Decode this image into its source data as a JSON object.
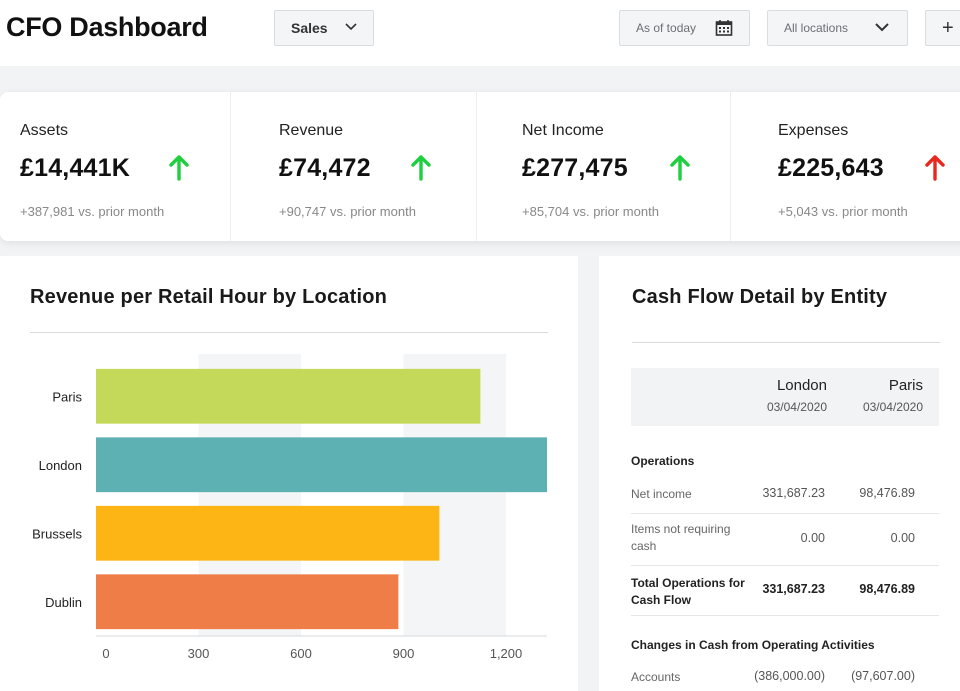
{
  "header": {
    "title": "CFO Dashboard",
    "view_select": "Sales",
    "date_filter": "As of today",
    "location_filter": "All locations",
    "add_label": "+"
  },
  "kpis": [
    {
      "label": "Assets",
      "value": "£14,441K",
      "delta": "+387,981 vs. prior month",
      "trend": "up",
      "trend_color": "#1fcf3f"
    },
    {
      "label": "Revenue",
      "value": "£74,472",
      "delta": "+90,747 vs. prior month",
      "trend": "up",
      "trend_color": "#1fcf3f"
    },
    {
      "label": "Net Income",
      "value": "£277,475",
      "delta": "+85,704 vs. prior month",
      "trend": "up",
      "trend_color": "#1fcf3f"
    },
    {
      "label": "Expenses",
      "value": "£225,643",
      "delta": "+5,043 vs. prior month",
      "trend": "up",
      "trend_color": "#e8281e"
    }
  ],
  "revenue_panel": {
    "title": "Revenue per Retail Hour by Location"
  },
  "chart_data": {
    "type": "bar",
    "orientation": "horizontal",
    "categories": [
      "Paris",
      "London",
      "Brussels",
      "Dublin"
    ],
    "values": [
      1125,
      1320,
      1005,
      885
    ],
    "colors": [
      "#c4d95a",
      "#5eb1b3",
      "#fdb515",
      "#ef7d47"
    ],
    "xticks": [
      0,
      300,
      600,
      900,
      1200
    ],
    "xtick_labels": [
      "0",
      "300",
      "600",
      "900",
      "1,200"
    ],
    "xlim": [
      0,
      1320
    ],
    "title": "Revenue per Retail Hour by Location",
    "xlabel": "",
    "ylabel": ""
  },
  "cashflow_panel": {
    "title": "Cash Flow Detail by Entity",
    "columns": [
      {
        "name": "London",
        "date": "03/04/2020"
      },
      {
        "name": "Paris",
        "date": "03/04/2020"
      }
    ],
    "section_operations": "Operations",
    "rows": [
      {
        "label": "Net income",
        "london": "331,687.23",
        "paris": "98,476.89"
      },
      {
        "label": "Items not requiring cash",
        "london": "0.00",
        "paris": "0.00"
      },
      {
        "label": "Total Operations for Cash Flow",
        "london": "331,687.23",
        "paris": "98,476.89"
      }
    ],
    "section_changes": "Changes in Cash from Operating Activities",
    "accounts_row": {
      "label": "Accounts",
      "london": "(386,000.00)",
      "paris": "(97,607.00)"
    }
  }
}
